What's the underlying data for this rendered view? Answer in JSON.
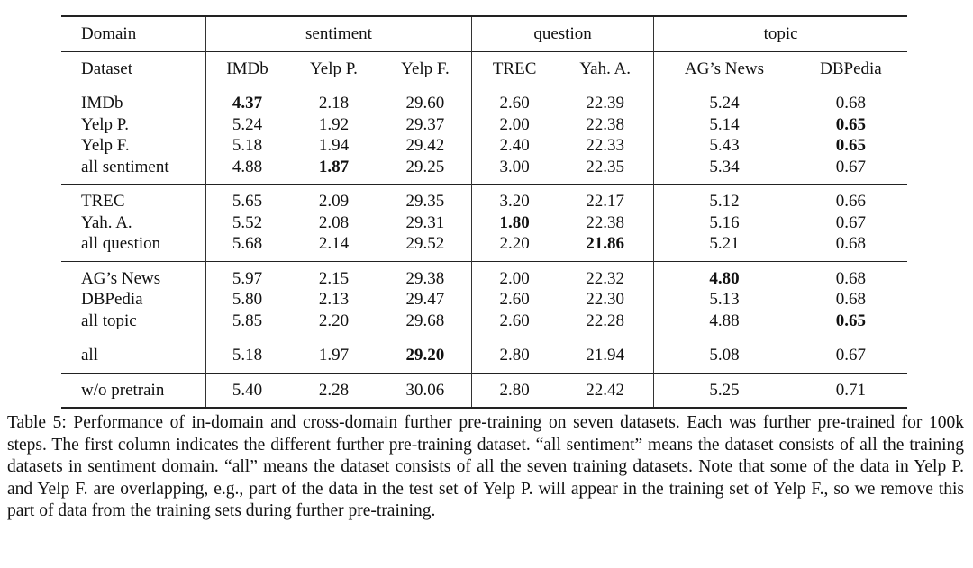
{
  "table": {
    "header_groups": {
      "domain_label": "Domain",
      "sentiment": "sentiment",
      "question": "question",
      "topic": "topic"
    },
    "columns": [
      "Dataset",
      "IMDb",
      "Yelp P.",
      "Yelp F.",
      "TREC",
      "Yah. A.",
      "AG’s News",
      "DBPedia"
    ],
    "groups": [
      {
        "rows": [
          {
            "name": "IMDb",
            "values": [
              "4.37",
              "2.18",
              "29.60",
              "2.60",
              "22.39",
              "5.24",
              "0.68"
            ],
            "bold": [
              0
            ]
          },
          {
            "name": "Yelp P.",
            "values": [
              "5.24",
              "1.92",
              "29.37",
              "2.00",
              "22.38",
              "5.14",
              "0.65"
            ],
            "bold": [
              6
            ]
          },
          {
            "name": "Yelp F.",
            "values": [
              "5.18",
              "1.94",
              "29.42",
              "2.40",
              "22.33",
              "5.43",
              "0.65"
            ],
            "bold": [
              6
            ]
          },
          {
            "name": "all sentiment",
            "values": [
              "4.88",
              "1.87",
              "29.25",
              "3.00",
              "22.35",
              "5.34",
              "0.67"
            ],
            "bold": [
              1
            ]
          }
        ]
      },
      {
        "rows": [
          {
            "name": "TREC",
            "values": [
              "5.65",
              "2.09",
              "29.35",
              "3.20",
              "22.17",
              "5.12",
              "0.66"
            ],
            "bold": []
          },
          {
            "name": "Yah. A.",
            "values": [
              "5.52",
              "2.08",
              "29.31",
              "1.80",
              "22.38",
              "5.16",
              "0.67"
            ],
            "bold": [
              3
            ]
          },
          {
            "name": "all question",
            "values": [
              "5.68",
              "2.14",
              "29.52",
              "2.20",
              "21.86",
              "5.21",
              "0.68"
            ],
            "bold": [
              4
            ]
          }
        ]
      },
      {
        "rows": [
          {
            "name": "AG’s News",
            "values": [
              "5.97",
              "2.15",
              "29.38",
              "2.00",
              "22.32",
              "4.80",
              "0.68"
            ],
            "bold": [
              5
            ]
          },
          {
            "name": "DBPedia",
            "values": [
              "5.80",
              "2.13",
              "29.47",
              "2.60",
              "22.30",
              "5.13",
              "0.68"
            ],
            "bold": []
          },
          {
            "name": "all topic",
            "values": [
              "5.85",
              "2.20",
              "29.68",
              "2.60",
              "22.28",
              "4.88",
              "0.65"
            ],
            "bold": [
              6
            ]
          }
        ]
      },
      {
        "rows": [
          {
            "name": "all",
            "values": [
              "5.18",
              "1.97",
              "29.20",
              "2.80",
              "21.94",
              "5.08",
              "0.67"
            ],
            "bold": [
              2
            ]
          }
        ]
      },
      {
        "rows": [
          {
            "name": "w/o pretrain",
            "values": [
              "5.40",
              "2.28",
              "30.06",
              "2.80",
              "22.42",
              "5.25",
              "0.71"
            ],
            "bold": []
          }
        ]
      }
    ]
  },
  "caption": "Table 5: Performance of in-domain and cross-domain further pre-training on seven datasets. Each was further pre-trained for 100k steps. The first column indicates the different further pre-training dataset. “all sentiment” means the dataset consists of all the training datasets in sentiment domain. “all” means the dataset consists of all the seven training datasets. Note that some of the data in Yelp P. and Yelp F. are overlapping, e.g., part of the data in the test set of Yelp P. will appear in the training set of Yelp F., so we remove this part of data from the training sets during further pre-training."
}
